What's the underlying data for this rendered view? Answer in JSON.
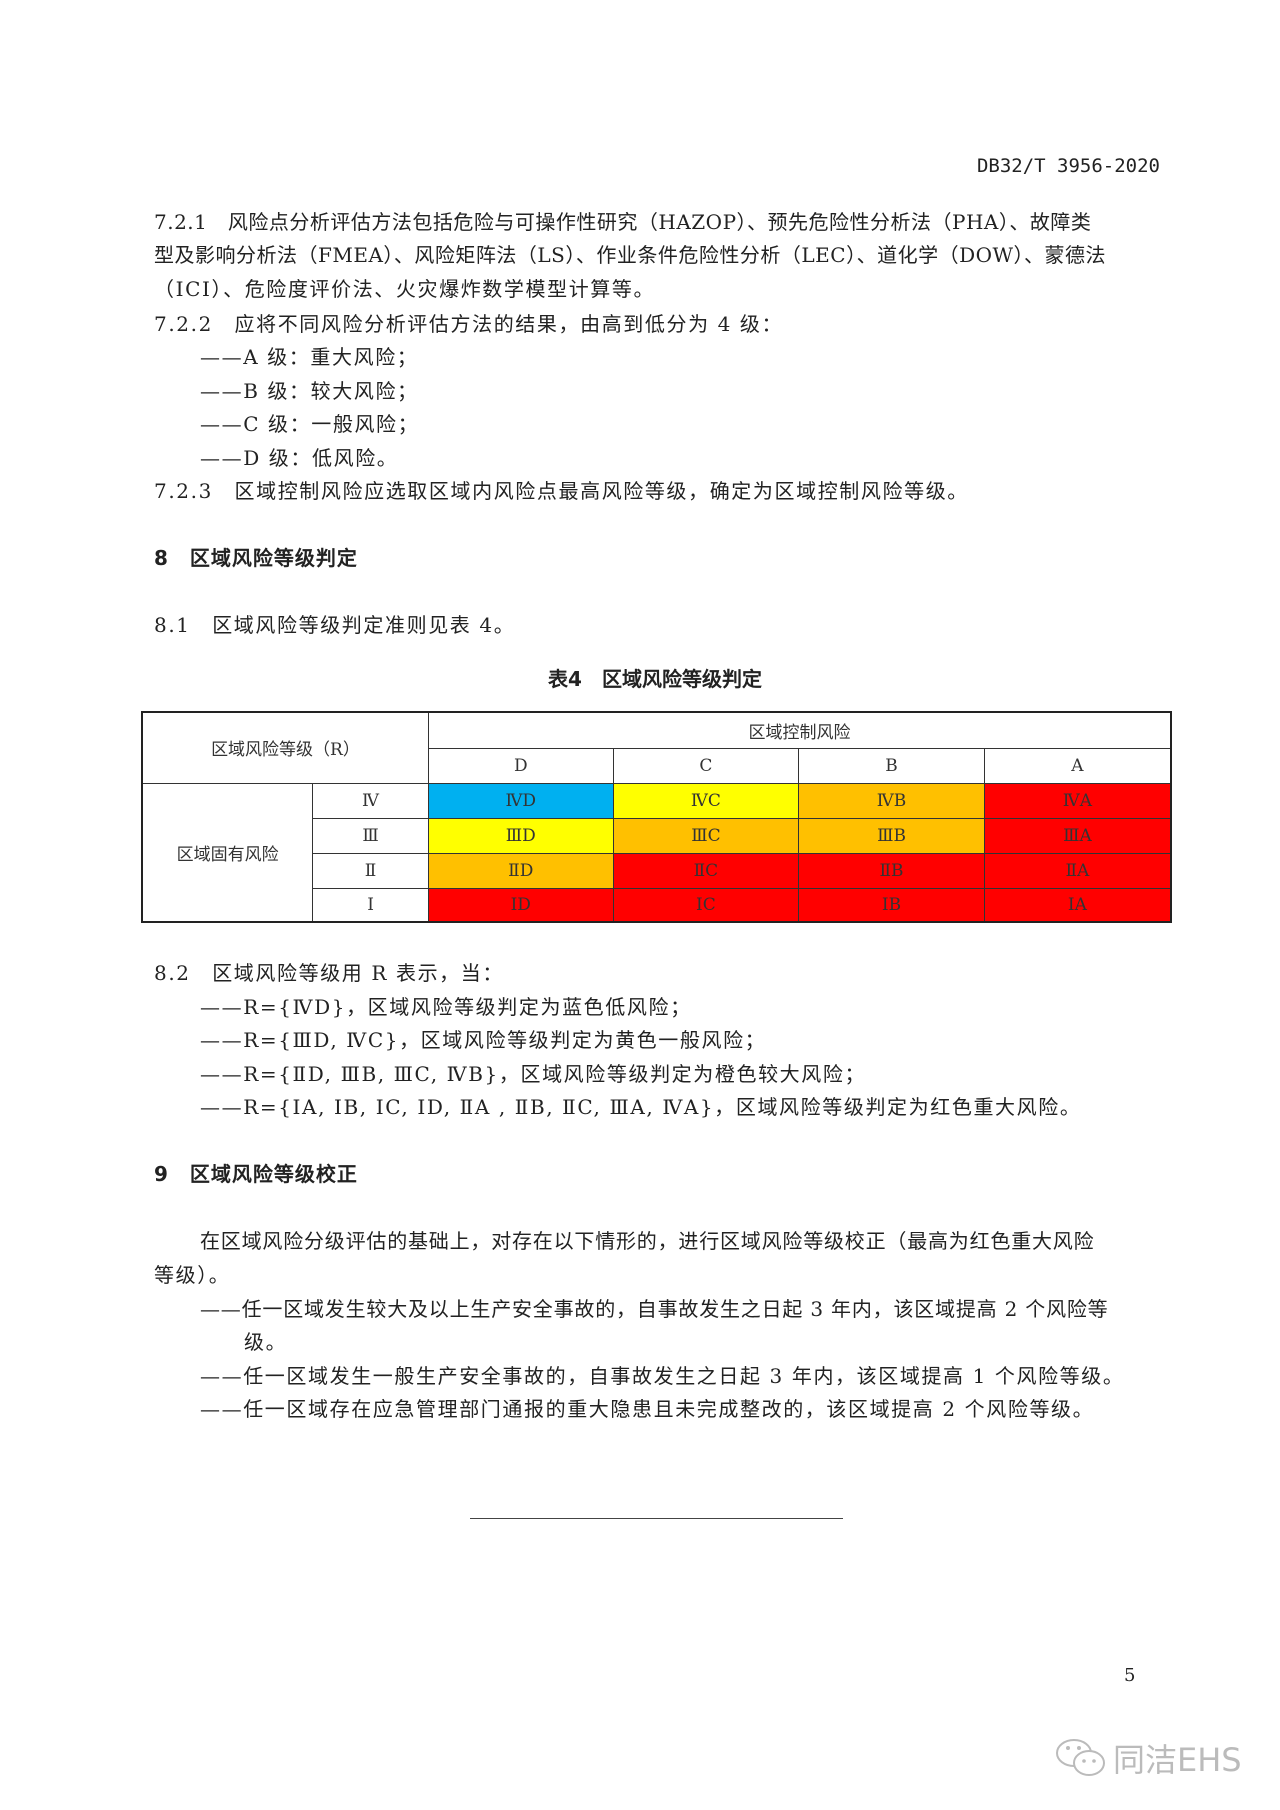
{
  "header": {
    "doc_id": "DB32/T 3956-2020"
  },
  "s721": {
    "lines": [
      "7.2.1　风险点分析评估方法包括危险与可操作性研究（HAZOP）、预先危险性分析法（PHA）、故障类",
      "型及影响分析法（FMEA）、风险矩阵法（LS）、作业条件危险性分析（LEC）、道化学（DOW）、蒙德法",
      "（ICI）、危险度评价法、火灾爆炸数学模型计算等。"
    ]
  },
  "s722": {
    "text": "7.2.2　应将不同风险分析评估方法的结果，由高到低分为 4 级：",
    "items": [
      "——A 级：重大风险；",
      "——B 级：较大风险；",
      "——C 级：一般风险；",
      "——D 级：低风险。"
    ]
  },
  "s723": {
    "text": "7.2.3　区域控制风险应选取区域内风险点最高风险等级，确定为区域控制风险等级。"
  },
  "s8": {
    "heading": "8　区域风险等级判定",
    "s81": "8.1　区域风险等级判定准则见表 4。"
  },
  "table4": {
    "title": "表4　区域风险等级判定",
    "corner": "区域风险等级（R）",
    "col_group": "区域控制风险",
    "cols": [
      "D",
      "C",
      "B",
      "A"
    ],
    "row_group": "区域固有风险",
    "rows": [
      {
        "label": "Ⅳ",
        "cells": [
          "ⅣD",
          "ⅣC",
          "ⅣB",
          "ⅣA"
        ],
        "colors": [
          "#00b0f0",
          "#ffff00",
          "#ffc000",
          "#ff0000"
        ]
      },
      {
        "label": "Ⅲ",
        "cells": [
          "ⅢD",
          "ⅢC",
          "ⅢB",
          "ⅢA"
        ],
        "colors": [
          "#ffff00",
          "#ffc000",
          "#ffc000",
          "#ff0000"
        ]
      },
      {
        "label": "Ⅱ",
        "cells": [
          "ⅡD",
          "ⅡC",
          "ⅡB",
          "ⅡA"
        ],
        "colors": [
          "#ffc000",
          "#ff0000",
          "#ff0000",
          "#ff0000"
        ]
      },
      {
        "label": "Ⅰ",
        "cells": [
          "ⅠD",
          "ⅠC",
          "ⅠB",
          "ⅠA"
        ],
        "colors": [
          "#ff0000",
          "#ff0000",
          "#ff0000",
          "#ff0000"
        ]
      }
    ]
  },
  "s82": {
    "text": "8.2　区域风险等级用 R 表示，当：",
    "items": [
      "——R={ⅣD}，区域风险等级判定为蓝色低风险；",
      "——R={ⅢD, ⅣC}，区域风险等级判定为黄色一般风险；",
      "——R={ⅡD, ⅢB, ⅢC, ⅣB}，区域风险等级判定为橙色较大风险；",
      "——R={ⅠA, ⅠB, ⅠC, ⅠD, ⅡA , ⅡB, ⅡC, ⅢA, ⅣA}，区域风险等级判定为红色重大风险。"
    ]
  },
  "s9": {
    "heading": "9　区域风险等级校正",
    "para_lines": [
      "在区域风险分级评估的基础上，对存在以下情形的，进行区域风险等级校正（最高为红色重大风险",
      "等级）。"
    ],
    "items": [
      "——任一区域发生较大及以上生产安全事故的，自事故发生之日起 3 年内，该区域提高 2 个风险等",
      "级。",
      "——任一区域发生一般生产安全事故的，自事故发生之日起 3 年内，该区域提高 1 个风险等级。",
      "——任一区域存在应急管理部门通报的重大隐患且未完成整改的，该区域提高 2 个风险等级。"
    ]
  },
  "footer": {
    "page": "5",
    "watermark": "同洁EHS"
  }
}
